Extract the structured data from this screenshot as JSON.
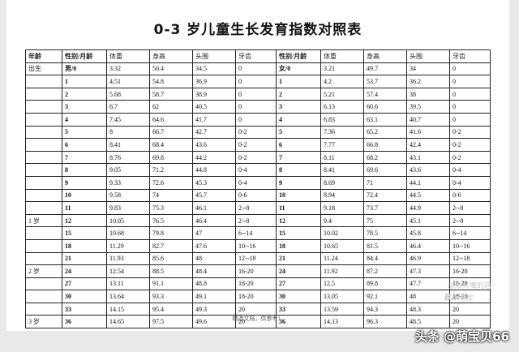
{
  "title": "0-3 岁儿童生长发育指数对照表",
  "headers": [
    "年龄",
    "性别/月龄",
    "体重",
    "身高",
    "头围",
    "牙齿",
    "性别/月龄",
    "体重",
    "身高",
    "头围",
    "牙齿"
  ],
  "rows": [
    [
      "出生",
      "男/0",
      "3.32",
      "50.4",
      "34.5",
      "0",
      "女/0",
      "3.21",
      "49.7",
      "34",
      "0"
    ],
    [
      "",
      "1",
      "4.51",
      "54.8",
      "36.9",
      "0",
      "1",
      "4.2",
      "53.7",
      "36.2",
      "0"
    ],
    [
      "",
      "2",
      "5.68",
      "58.7",
      "38.9",
      "0",
      "2",
      "5.21",
      "57.4",
      "38",
      "0"
    ],
    [
      "",
      "3",
      "6.7",
      "62",
      "40.5",
      "0",
      "3",
      "6.13",
      "60.6",
      "39.5",
      "0"
    ],
    [
      "",
      "4",
      "7.45",
      "64.6",
      "41.7",
      "0",
      "4",
      "6.83",
      "63.1",
      "40.7",
      "0"
    ],
    [
      "",
      "5",
      "8",
      "66.7",
      "42.7",
      "0-2",
      "5",
      "7.36",
      "65.2",
      "41.6",
      "0-2"
    ],
    [
      "",
      "6",
      "8.41",
      "68.4",
      "43.6",
      "0-2",
      "6",
      "7.77",
      "66.8",
      "42.4",
      "0-2"
    ],
    [
      "",
      "7",
      "8.76",
      "69.8",
      "44.2",
      "0-2",
      "7",
      "8.11",
      "68.2",
      "43.1",
      "0-2"
    ],
    [
      "",
      "8",
      "9.05",
      "71.2",
      "44.8",
      "0-4",
      "8",
      "8.41",
      "69.6",
      "43.6",
      "0-4"
    ],
    [
      "",
      "9",
      "9.33",
      "72.6",
      "45.3",
      "0-4",
      "9",
      "8.69",
      "71",
      "44.1",
      "0-4"
    ],
    [
      "",
      "10",
      "9.58",
      "74",
      "45.7",
      "0-6",
      "10",
      "8.94",
      "72.4",
      "44.5",
      "0-6"
    ],
    [
      "",
      "11",
      "9.83",
      "75.3",
      "46.1",
      "2--8",
      "11",
      "9.18",
      "73.7",
      "44.9",
      "2--8"
    ],
    [
      "1 岁",
      "12",
      "10.05",
      "76.5",
      "46.4",
      "2--8",
      "12",
      "9.4",
      "75",
      "45.1",
      "2--8"
    ],
    [
      "",
      "15",
      "10.68",
      "79.8",
      "47",
      "6--14",
      "15",
      "10.02",
      "78.5",
      "45.8",
      "6--14"
    ],
    [
      "",
      "18",
      "11.29",
      "82.7",
      "47.6",
      "10--16",
      "18",
      "10.65",
      "81.5",
      "46.4",
      "10--16"
    ],
    [
      "",
      "21",
      "11.93",
      "85.6",
      "48",
      "12--18",
      "21",
      "11.24",
      "84.4",
      "46.9",
      "12--18"
    ],
    [
      "2 岁",
      "24",
      "12.54",
      "88.5",
      "48.4",
      "16-20",
      "24",
      "11.92",
      "87.2",
      "47.3",
      "16-20"
    ],
    [
      "",
      "27",
      "13.11",
      "91.1",
      "48.8",
      "18-20",
      "27",
      "12.5",
      "89.8",
      "47.7",
      "18-20"
    ],
    [
      "",
      "30",
      "13.64",
      "93.3",
      "49.1",
      "18-20",
      "30",
      "13.05",
      "92.1",
      "48",
      "18-20"
    ],
    [
      "",
      "33",
      "14.15",
      "95.4",
      "49.3",
      "20",
      "33",
      "13.59",
      "94.3",
      "48.3",
      "20"
    ],
    [
      "3 岁",
      "36",
      "14.65",
      "97.5",
      "49.6",
      "20",
      "36",
      "14.13",
      "96.3",
      "48.5",
      "20"
    ]
  ],
  "footer": "精选文档，供参考！",
  "watermark_shop": "@米大嘴的店",
  "watermark_baidu": "Bai",
  "watermark_baidu_suffix": "文库",
  "credit": "头条 @萌宝贝66"
}
